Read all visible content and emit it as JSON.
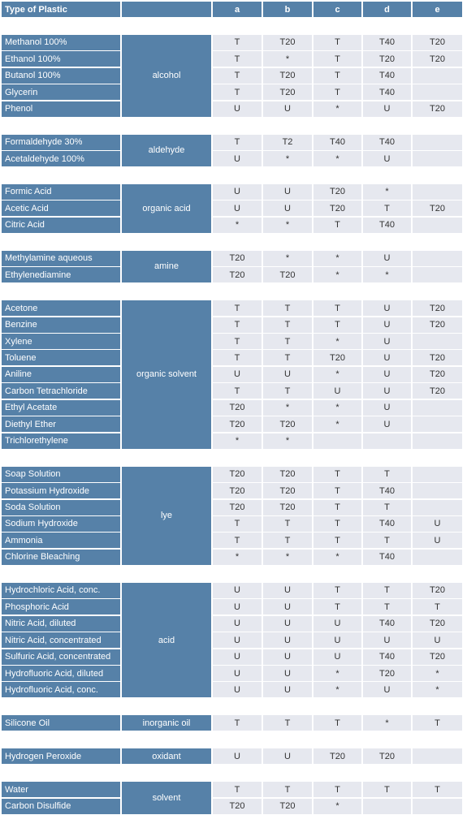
{
  "header": {
    "title": "Type of Plastic",
    "columns": [
      "a",
      "b",
      "c",
      "d",
      "e"
    ]
  },
  "groups": [
    {
      "category": "alcohol",
      "rows": [
        {
          "name": "Methanol 100%",
          "values": [
            "T",
            "T20",
            "T",
            "T40",
            "T20"
          ]
        },
        {
          "name": "Ethanol 100%",
          "values": [
            "T",
            "*",
            "T",
            "T20",
            "T20"
          ]
        },
        {
          "name": "Butanol 100%",
          "values": [
            "T",
            "T20",
            "T",
            "T40",
            null
          ]
        },
        {
          "name": "Glycerin",
          "values": [
            "T",
            "T20",
            "T",
            "T40",
            null
          ]
        },
        {
          "name": "Phenol",
          "values": [
            "U",
            "U",
            "*",
            "U",
            "T20"
          ]
        }
      ]
    },
    {
      "category": "aldehyde",
      "rows": [
        {
          "name": "Formaldehyde 30%",
          "values": [
            "T",
            "T2",
            "T40",
            "T40",
            null
          ]
        },
        {
          "name": "Acetaldehyde 100%",
          "values": [
            "U",
            "*",
            "*",
            "U",
            null
          ]
        }
      ]
    },
    {
      "category": "organic acid",
      "rows": [
        {
          "name": "Formic Acid",
          "values": [
            "U",
            "U",
            "T20",
            "*",
            null
          ]
        },
        {
          "name": "Acetic Acid",
          "values": [
            "U",
            "U",
            "T20",
            "T",
            "T20"
          ]
        },
        {
          "name": "Citric Acid",
          "values": [
            "*",
            "*",
            "T",
            "T40",
            null
          ]
        }
      ]
    },
    {
      "category": "amine",
      "rows": [
        {
          "name": "Methylamine aqueous",
          "values": [
            "T20",
            "*",
            "*",
            "U",
            null
          ]
        },
        {
          "name": "Ethylenediamine",
          "values": [
            "T20",
            "T20",
            "*",
            "*",
            null
          ]
        }
      ]
    },
    {
      "category": "organic solvent",
      "rows": [
        {
          "name": "Acetone",
          "values": [
            "T",
            "T",
            "T",
            "U",
            "T20"
          ]
        },
        {
          "name": "Benzine",
          "values": [
            "T",
            "T",
            "T",
            "U",
            "T20"
          ]
        },
        {
          "name": "Xylene",
          "values": [
            "T",
            "T",
            "*",
            "U",
            null
          ]
        },
        {
          "name": "Toluene",
          "values": [
            "T",
            "T",
            "T20",
            "U",
            "T20"
          ]
        },
        {
          "name": "Aniline",
          "values": [
            "U",
            "U",
            "*",
            "U",
            "T20"
          ]
        },
        {
          "name": "Carbon Tetrachloride",
          "values": [
            "T",
            "T",
            "U",
            "U",
            "T20"
          ]
        },
        {
          "name": "Ethyl Acetate",
          "values": [
            "T20",
            "*",
            "*",
            "U",
            null
          ]
        },
        {
          "name": "Diethyl Ether",
          "values": [
            "T20",
            "T20",
            "*",
            "U",
            null
          ]
        },
        {
          "name": "Trichlorethylene",
          "values": [
            "*",
            "*",
            null,
            null,
            null
          ]
        }
      ]
    },
    {
      "category": "lye",
      "rows": [
        {
          "name": "Soap Solution",
          "values": [
            "T20",
            "T20",
            "T",
            "T",
            null
          ]
        },
        {
          "name": "Potassium Hydroxide",
          "values": [
            "T20",
            "T20",
            "T",
            "T40",
            null
          ]
        },
        {
          "name": "Soda Solution",
          "values": [
            "T20",
            "T20",
            "T",
            "T",
            null
          ]
        },
        {
          "name": "Sodium Hydroxide",
          "values": [
            "T",
            "T",
            "T",
            "T40",
            "U"
          ]
        },
        {
          "name": "Ammonia",
          "values": [
            "T",
            "T",
            "T",
            "T",
            "U"
          ]
        },
        {
          "name": "Chlorine Bleaching",
          "values": [
            "*",
            "*",
            "*",
            "T40",
            null
          ]
        }
      ]
    },
    {
      "category": "acid",
      "rows": [
        {
          "name": "Hydrochloric Acid, conc.",
          "values": [
            "U",
            "U",
            "T",
            "T",
            "T20"
          ]
        },
        {
          "name": "Phosphoric Acid",
          "values": [
            "U",
            "U",
            "T",
            "T",
            "T"
          ]
        },
        {
          "name": "Nitric Acid, diluted",
          "values": [
            "U",
            "U",
            "U",
            "T40",
            "T20"
          ]
        },
        {
          "name": "Nitric Acid, concentrated",
          "values": [
            "U",
            "U",
            "U",
            "U",
            "U"
          ]
        },
        {
          "name": "Sulfuric Acid, concentrated",
          "values": [
            "U",
            "U",
            "U",
            "T40",
            "T20"
          ]
        },
        {
          "name": "Hydrofluoric Acid, diluted",
          "values": [
            "U",
            "U",
            "*",
            "T20",
            "*"
          ]
        },
        {
          "name": "Hydrofluoric Acid, conc.",
          "values": [
            "U",
            "U",
            "*",
            "U",
            "*"
          ]
        }
      ]
    },
    {
      "category": "inorganic oil",
      "rows": [
        {
          "name": "Silicone Oil",
          "values": [
            "T",
            "T",
            "T",
            "*",
            "T"
          ]
        }
      ]
    },
    {
      "category": "oxidant",
      "rows": [
        {
          "name": "Hydrogen Peroxide",
          "values": [
            "U",
            "U",
            "T20",
            "T20",
            null
          ]
        }
      ]
    },
    {
      "category": "solvent",
      "rows": [
        {
          "name": "Water",
          "values": [
            "T",
            "T",
            "T",
            "T",
            "T"
          ]
        },
        {
          "name": "Carbon Disulfide",
          "values": [
            "T20",
            "T20",
            "*",
            null,
            null
          ]
        }
      ]
    }
  ]
}
